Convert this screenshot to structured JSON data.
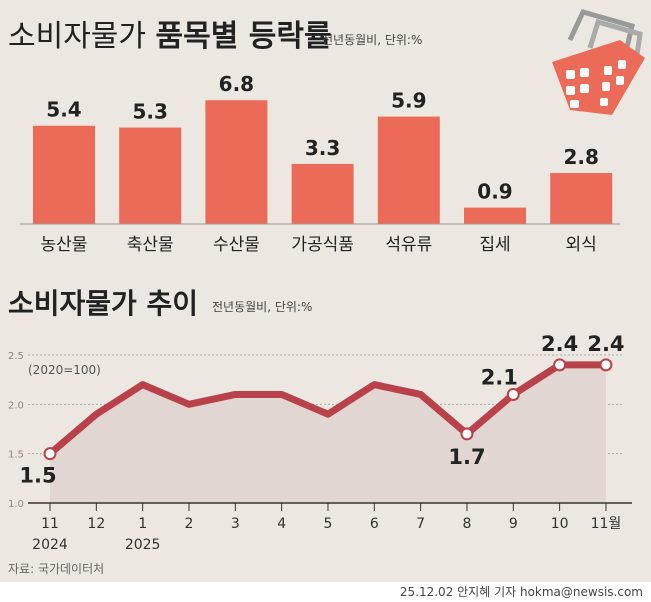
{
  "chart_data": [
    {
      "type": "bar",
      "title": "소비자물가",
      "title_bold": "품목별 등락률",
      "subtitle": "전년동월비, 단위:%",
      "categories": [
        "농산물",
        "축산물",
        "수산물",
        "가공식품",
        "석유류",
        "집세",
        "외식"
      ],
      "values": [
        5.4,
        5.3,
        6.8,
        3.3,
        5.9,
        0.9,
        2.8
      ],
      "color": "#ec6a58",
      "icon": "shopping-basket-icon"
    },
    {
      "type": "line",
      "title": "소비자물가 추이",
      "subtitle": "전년동월비, 단위:%",
      "note": "(2020=100)",
      "x": [
        "11",
        "12",
        "1",
        "2",
        "3",
        "4",
        "5",
        "6",
        "7",
        "8",
        "9",
        "10",
        "11월"
      ],
      "year_labels": [
        {
          "index": 0,
          "label": "2024"
        },
        {
          "index": 2,
          "label": "2025"
        }
      ],
      "values": [
        1.5,
        1.9,
        2.2,
        2.0,
        2.1,
        2.1,
        1.9,
        2.2,
        2.1,
        1.7,
        2.1,
        2.4,
        2.4
      ],
      "labeled_points": [
        0,
        9,
        10,
        11,
        12
      ],
      "yticks": [
        "1.0",
        "1.5",
        "2.0",
        "2.5"
      ],
      "ylim": [
        1.0,
        2.5
      ],
      "grid": true,
      "line_color": "#b8414a",
      "fill_color": "#e2d6d2"
    }
  ],
  "source": "자료: 국가데이터처",
  "credit": "25.12.02 안지혜 기자 hokma@newsis.com"
}
